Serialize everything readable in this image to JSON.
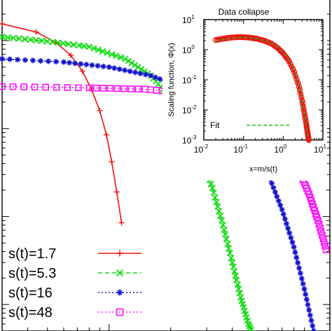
{
  "chart_data": [
    {
      "type": "line",
      "title": "",
      "xlabel": "",
      "ylabel": "",
      "xscale": "log",
      "yscale": "log",
      "xlim": [
        0.3,
        12
      ],
      "ylim": [
        0.0005,
        3
      ],
      "grid": false,
      "legend_position": "bottom-left",
      "series": [
        {
          "name": "s(t)=1.7",
          "color": "#ee1111",
          "marker": "plus",
          "linestyle": "solid",
          "x": [
            0.3,
            0.44,
            0.55,
            0.65,
            0.74,
            0.82,
            0.9,
            0.97,
            1.03,
            1.09,
            1.15
          ],
          "y": [
            1.55,
            1.25,
            0.95,
            0.68,
            0.45,
            0.28,
            0.16,
            0.085,
            0.042,
            0.019,
            0.0085
          ]
        },
        {
          "name": "s(t)=5.3",
          "color": "#11dd11",
          "marker": "x",
          "linestyle": "dashed",
          "x": [
            0.3,
            0.5,
            0.8,
            1.2,
            1.6,
            2.0,
            2.4,
            2.8,
            3.2,
            3.6,
            4.0,
            4.4,
            4.8,
            5.2
          ],
          "y": [
            1.1,
            0.98,
            0.85,
            0.62,
            0.4,
            0.22,
            0.11,
            0.05,
            0.021,
            0.008,
            0.003,
            0.0012,
            0.0006,
            0.0004
          ]
        },
        {
          "name": "s(t)=16",
          "color": "#1111cc",
          "marker": "star",
          "linestyle": "dotted",
          "x": [
            0.3,
            0.6,
            1.0,
            1.6,
            2.4,
            3.2,
            4.0,
            5.0,
            6.0,
            7.0,
            8.0,
            9.0,
            10.0
          ],
          "y": [
            0.62,
            0.57,
            0.5,
            0.4,
            0.28,
            0.19,
            0.12,
            0.065,
            0.03,
            0.012,
            0.0045,
            0.0015,
            0.0005
          ]
        },
        {
          "name": "s(t)=48",
          "color": "#ff11ff",
          "marker": "square",
          "linestyle": "dotted",
          "x": [
            0.3,
            0.8,
            1.5,
            2.5,
            3.5,
            4.5,
            5.5,
            6.5,
            7.5,
            8.5,
            9.5,
            10.5,
            11.5
          ],
          "y": [
            0.3,
            0.29,
            0.28,
            0.25,
            0.21,
            0.17,
            0.125,
            0.085,
            0.055,
            0.033,
            0.018,
            0.009,
            0.0042
          ]
        }
      ]
    },
    {
      "type": "line",
      "title": "Data collapse",
      "xlabel": "x=m/s(t)",
      "ylabel": "Scaling function, Φ(x)",
      "xscale": "log",
      "yscale": "log",
      "xlim": [
        0.01,
        10
      ],
      "ylim": [
        0.001,
        10
      ],
      "grid": false,
      "xticks": [
        "10",
        "10",
        "10",
        "10"
      ],
      "xtick_exponents": [
        "-2",
        "-1",
        "0",
        "1"
      ],
      "yticks": [
        "10",
        "10",
        "10",
        "10",
        "10"
      ],
      "ytick_exponents": [
        "-3",
        "-2",
        "-1",
        "0",
        "1"
      ],
      "legend_position": "bottom-right",
      "series": [
        {
          "name": "",
          "color": "#ee1111",
          "marker": "circle",
          "x": [
            0.02,
            0.03,
            0.045,
            0.07,
            0.1,
            0.15,
            0.22,
            0.33,
            0.5,
            0.75,
            1.0,
            1.4,
            1.9,
            2.5,
            3.0,
            3.4,
            3.8,
            4.1,
            4.3,
            4.4
          ],
          "y": [
            2.1,
            2.3,
            2.5,
            2.6,
            2.6,
            2.5,
            2.3,
            2.0,
            1.6,
            1.1,
            0.75,
            0.42,
            0.18,
            0.06,
            0.02,
            0.008,
            0.0035,
            0.0018,
            0.0012,
            0.001
          ]
        },
        {
          "name": "Fit",
          "color": "#22bb22",
          "linestyle": "dashed",
          "x": [
            0.02,
            0.05,
            0.1,
            0.2,
            0.4,
            0.7,
            1.0,
            1.5,
            2.0,
            2.6,
            3.2,
            3.7,
            4.1,
            4.4
          ],
          "y": [
            2.0,
            2.45,
            2.55,
            2.4,
            1.9,
            1.25,
            0.8,
            0.4,
            0.16,
            0.05,
            0.013,
            0.004,
            0.0016,
            0.001
          ]
        }
      ]
    }
  ]
}
